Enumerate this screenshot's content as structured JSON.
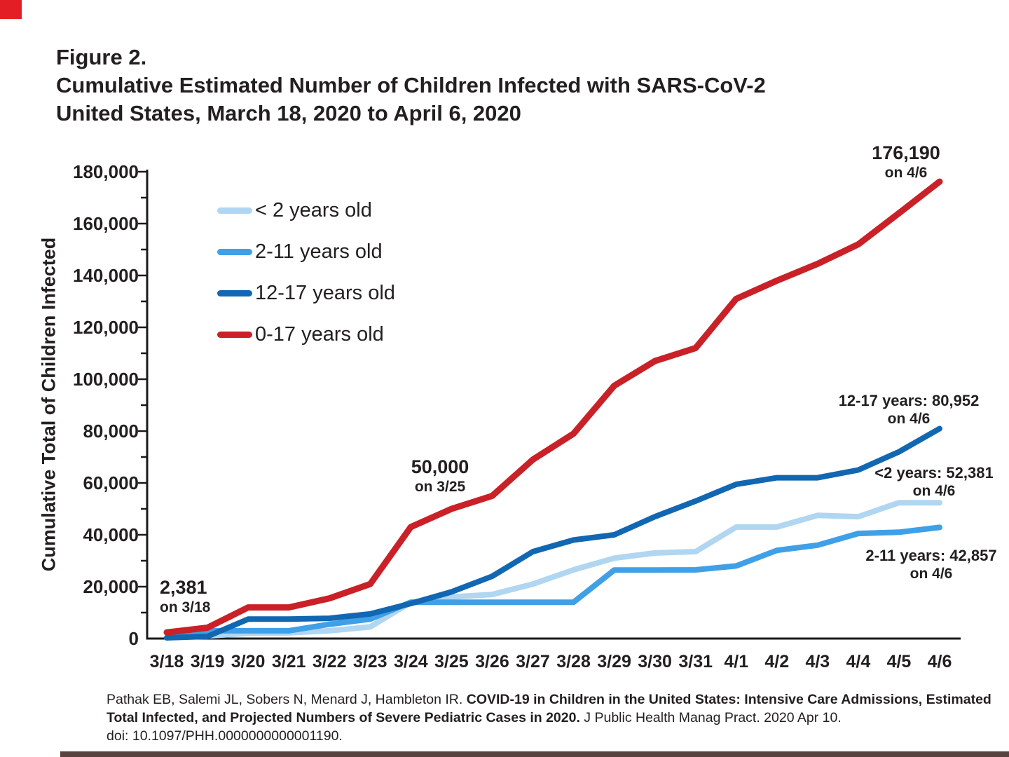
{
  "page": {
    "figure_label": "Figure 2.",
    "title_line1": "Cumulative Estimated Number of Children Infected with SARS-CoV-2",
    "title_line2": "United States, March 18, 2020 to April 6, 2020"
  },
  "decor": {
    "corner_strip_color": "#e31e25",
    "bottom_strip_color": "#584340"
  },
  "chart_data": {
    "type": "line",
    "title": "Cumulative Estimated Number of Children Infected with SARS-CoV-2, United States, March 18, 2020 to April 6, 2020",
    "xlabel": "",
    "ylabel": "Cumulative Total of Children Infected",
    "ylim": [
      0,
      180000
    ],
    "grid": false,
    "legend_position": "upper-left-inside",
    "minor_tick_step": 10000,
    "y_ticks": [
      {
        "value": 0,
        "label": "0"
      },
      {
        "value": 20000,
        "label": "20,000"
      },
      {
        "value": 40000,
        "label": "40,000"
      },
      {
        "value": 60000,
        "label": "60,000"
      },
      {
        "value": 80000,
        "label": "80,000"
      },
      {
        "value": 100000,
        "label": "100,000"
      },
      {
        "value": 120000,
        "label": "120,000"
      },
      {
        "value": 140000,
        "label": "140,000"
      },
      {
        "value": 160000,
        "label": "160,000"
      },
      {
        "value": 180000,
        "label": "180,000"
      }
    ],
    "categories": [
      "3/18",
      "3/19",
      "3/20",
      "3/21",
      "3/22",
      "3/23",
      "3/24",
      "3/25",
      "3/26",
      "3/27",
      "3/28",
      "3/29",
      "3/30",
      "3/31",
      "4/1",
      "4/2",
      "4/3",
      "4/4",
      "4/5",
      "4/6"
    ],
    "series": [
      {
        "key": "under-2",
        "name": "< 2 years old",
        "color": "#b0d6f1",
        "stroke_width": 8,
        "values": [
          300,
          1000,
          2000,
          2200,
          3000,
          4500,
          14000,
          16000,
          17000,
          21000,
          26500,
          31000,
          33000,
          33500,
          43000,
          43000,
          47500,
          47000,
          52381,
          52381
        ]
      },
      {
        "key": "2-11",
        "name": "2-11 years old",
        "color": "#3fa0e8",
        "stroke_width": 8,
        "values": [
          300,
          3000,
          3000,
          3000,
          5500,
          7500,
          14000,
          14000,
          14000,
          14000,
          14000,
          26400,
          26400,
          26500,
          28000,
          34000,
          36000,
          40500,
          41000,
          42857
        ]
      },
      {
        "key": "12-17",
        "name": "12-17 years old",
        "color": "#1267b2",
        "stroke_width": 8,
        "values": [
          300,
          800,
          7500,
          7500,
          7800,
          9500,
          13500,
          18000,
          24000,
          33500,
          38000,
          40000,
          47000,
          53000,
          59500,
          62000,
          62000,
          65000,
          72000,
          80952
        ]
      },
      {
        "key": "0-17",
        "name": "0-17 years old",
        "color": "#c92127",
        "stroke_width": 9,
        "values": [
          2381,
          4200,
          12000,
          12000,
          15500,
          21000,
          43000,
          50000,
          55000,
          69000,
          79000,
          97500,
          107000,
          112000,
          131000,
          138000,
          144500,
          152000,
          164000,
          176190
        ]
      }
    ]
  },
  "annotations": {
    "start": {
      "value": "2,381",
      "date": "on 3/18"
    },
    "mid": {
      "value": "50,000",
      "date": "on 3/25"
    },
    "total_final": {
      "value": "176,190",
      "date": "on 4/6"
    },
    "teens_final": {
      "value": "12-17 years: 80,952",
      "date": "on 4/6"
    },
    "infants_final": {
      "value": "<2 years: 52,381",
      "date": "on 4/6"
    },
    "children_final": {
      "value": "2-11 years: 42,857",
      "date": "on 4/6"
    }
  },
  "citation": {
    "authors": "Pathak EB, Salemi JL, Sobers N, Menard J, Hambleton IR. ",
    "title_part1": "COVID-19 in Children in the United States: Intensive Care Admissions, Estimated",
    "title_part2": "Total Infected, and Projected Numbers of Severe Pediatric Cases in 2020.",
    "journal": " J Public Health Manag Pract. 2020 Apr 10.",
    "doi": "doi: 10.1097/PHH.0000000000001190."
  }
}
